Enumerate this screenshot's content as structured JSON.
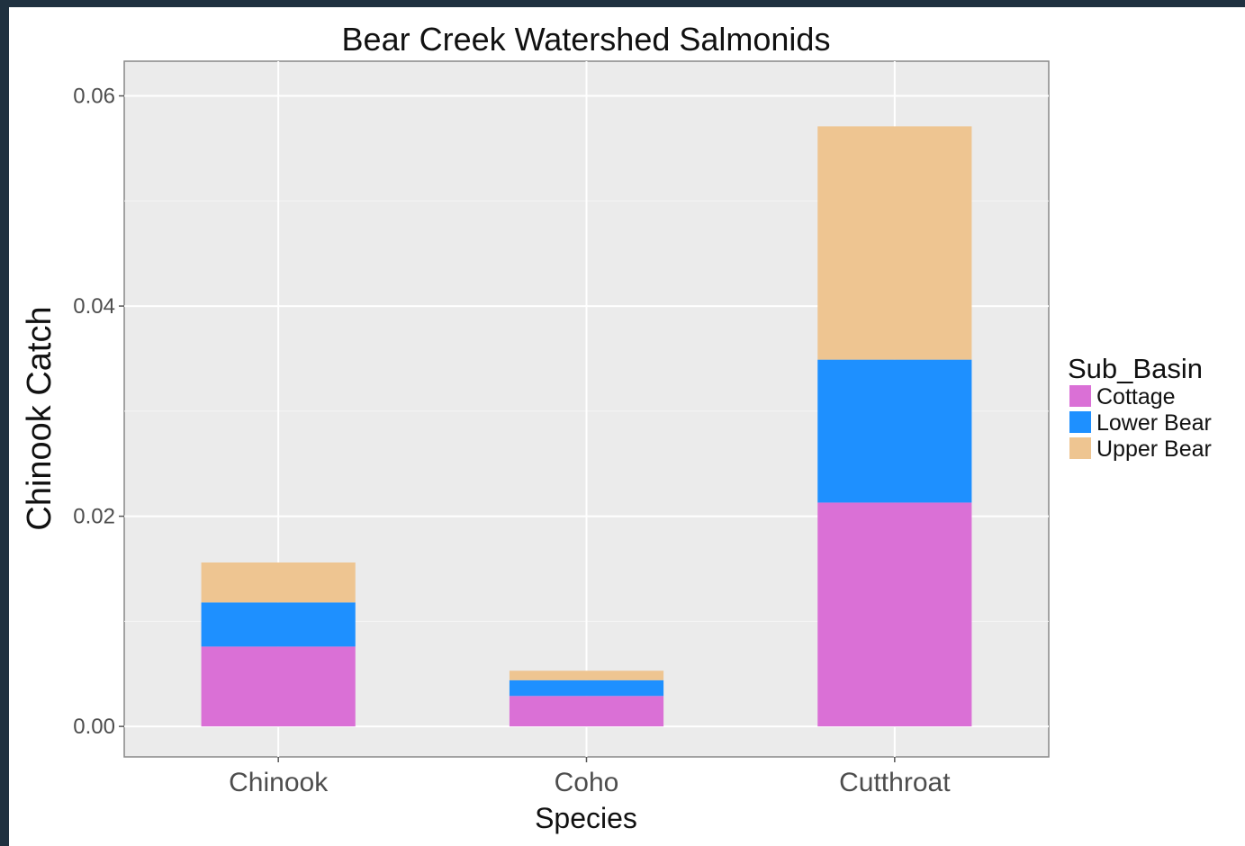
{
  "chart_data": {
    "type": "bar",
    "stacked": true,
    "title": "Bear Creek Watershed Salmonids",
    "xlabel": "Species",
    "ylabel": "Chinook Catch",
    "categories": [
      "Chinook",
      "Coho",
      "Cutthroat"
    ],
    "series": [
      {
        "name": "Cottage",
        "color": "#da70d6",
        "values": [
          0.0076,
          0.0029,
          0.0213
        ]
      },
      {
        "name": "Lower Bear",
        "color": "#1e90ff",
        "values": [
          0.0042,
          0.0015,
          0.0136
        ]
      },
      {
        "name": "Upper Bear",
        "color": "#eec591",
        "values": [
          0.0038,
          0.0009,
          0.0222
        ]
      }
    ],
    "ylim": [
      -0.0029,
      0.0633
    ],
    "yticks": [
      0.0,
      0.02,
      0.04,
      0.06
    ],
    "ytick_labels": [
      "0.00",
      "0.02",
      "0.04",
      "0.06"
    ],
    "grid": true,
    "legend": {
      "title": "Sub_Basin",
      "position": "right"
    },
    "panel_background": "#ebebeb"
  }
}
